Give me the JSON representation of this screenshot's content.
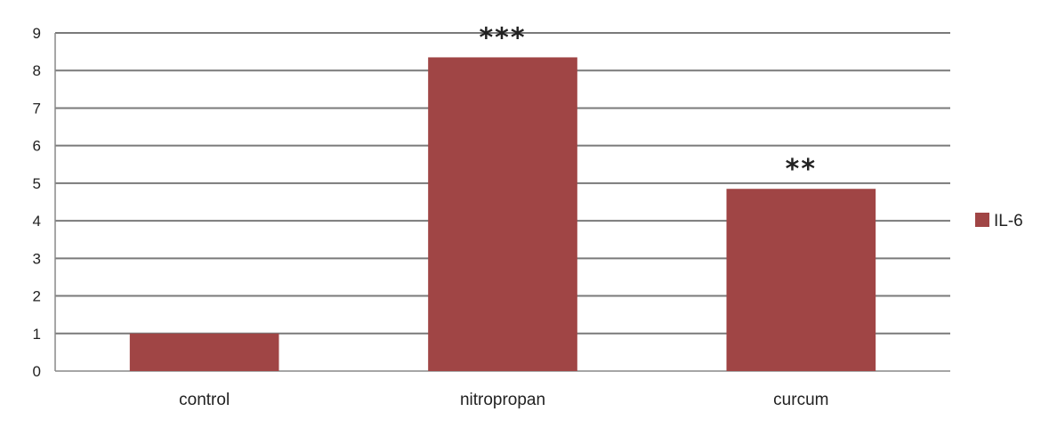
{
  "chart_data": {
    "type": "bar",
    "categories": [
      "control",
      "nitropropan",
      "curcum"
    ],
    "series": [
      {
        "name": "IL-6",
        "values": [
          1.0,
          8.35,
          4.85
        ]
      }
    ],
    "annotations": [
      "",
      "***",
      "**"
    ],
    "ylim": [
      0,
      9
    ],
    "yticks": [
      0,
      1,
      2,
      3,
      4,
      5,
      6,
      7,
      8,
      9
    ],
    "grid": true,
    "legend": "right",
    "title": "",
    "xlabel": "",
    "ylabel": "",
    "colors": {
      "bar": "#a04545",
      "grid": "#7a7a7a",
      "axis": "#888888"
    }
  }
}
